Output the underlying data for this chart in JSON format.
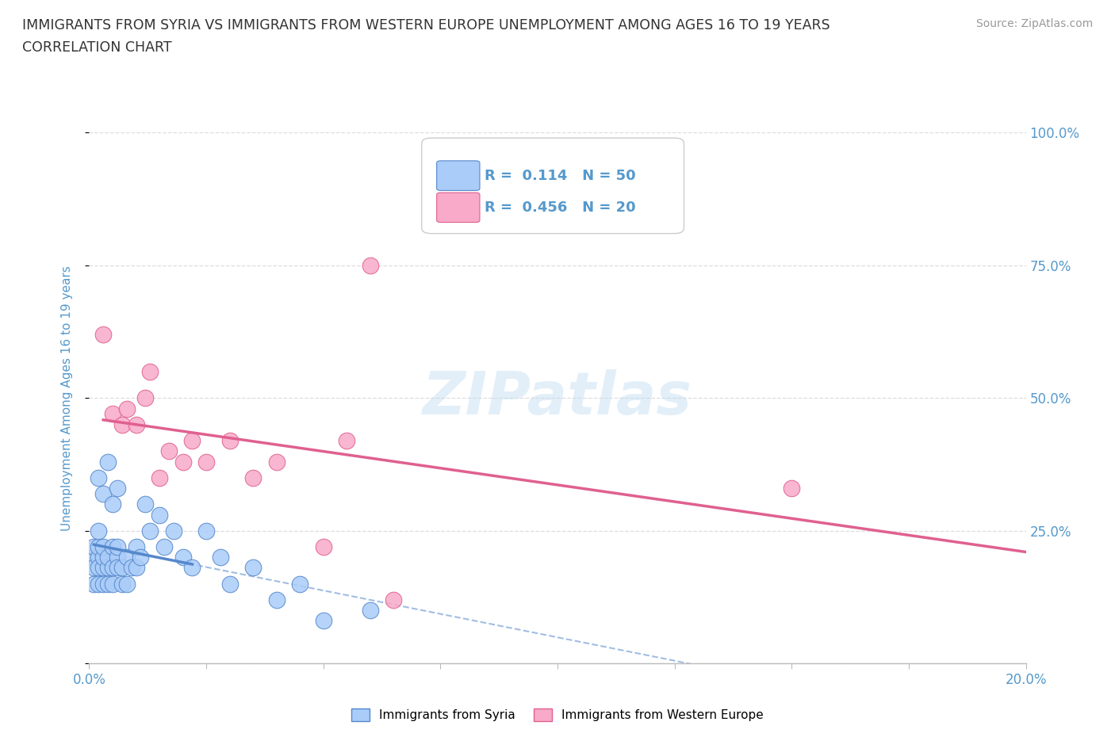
{
  "title_line1": "IMMIGRANTS FROM SYRIA VS IMMIGRANTS FROM WESTERN EUROPE UNEMPLOYMENT AMONG AGES 16 TO 19 YEARS",
  "title_line2": "CORRELATION CHART",
  "source": "Source: ZipAtlas.com",
  "ylabel": "Unemployment Among Ages 16 to 19 years",
  "xlim": [
    0.0,
    0.2
  ],
  "ylim": [
    0.0,
    1.0
  ],
  "yticks": [
    0.0,
    0.25,
    0.5,
    0.75,
    1.0
  ],
  "ytick_labels": [
    "",
    "25.0%",
    "50.0%",
    "75.0%",
    "100.0%"
  ],
  "xticks": [
    0.0,
    0.025,
    0.05,
    0.075,
    0.1,
    0.125,
    0.15,
    0.175,
    0.2
  ],
  "xtick_labels": [
    "0.0%",
    "",
    "",
    "",
    "",
    "",
    "",
    "",
    "20.0%"
  ],
  "watermark": "ZIPatlas",
  "syria_color": "#aaccf8",
  "we_color": "#f8aac8",
  "syria_line_color": "#5588cc",
  "we_line_color": "#e06090",
  "background_color": "#ffffff",
  "grid_color": "#dddddd",
  "title_color": "#333333",
  "axis_color": "#5599cc",
  "legend_box_color": "#eeeeee",
  "syria_points_x": [
    0.001,
    0.001,
    0.001,
    0.001,
    0.002,
    0.002,
    0.002,
    0.002,
    0.002,
    0.003,
    0.003,
    0.003,
    0.003,
    0.004,
    0.004,
    0.004,
    0.005,
    0.005,
    0.005,
    0.006,
    0.006,
    0.006,
    0.007,
    0.007,
    0.008,
    0.008,
    0.009,
    0.01,
    0.01,
    0.011,
    0.012,
    0.013,
    0.015,
    0.016,
    0.018,
    0.02,
    0.022,
    0.025,
    0.028,
    0.03,
    0.035,
    0.04,
    0.045,
    0.05,
    0.06,
    0.002,
    0.003,
    0.004,
    0.005,
    0.006
  ],
  "syria_points_y": [
    0.2,
    0.18,
    0.22,
    0.15,
    0.2,
    0.18,
    0.22,
    0.25,
    0.15,
    0.18,
    0.2,
    0.15,
    0.22,
    0.18,
    0.2,
    0.15,
    0.22,
    0.18,
    0.15,
    0.2,
    0.18,
    0.22,
    0.15,
    0.18,
    0.2,
    0.15,
    0.18,
    0.22,
    0.18,
    0.2,
    0.3,
    0.25,
    0.28,
    0.22,
    0.25,
    0.2,
    0.18,
    0.25,
    0.2,
    0.15,
    0.18,
    0.12,
    0.15,
    0.08,
    0.1,
    0.35,
    0.32,
    0.38,
    0.3,
    0.33
  ],
  "we_points_x": [
    0.003,
    0.005,
    0.007,
    0.008,
    0.01,
    0.012,
    0.013,
    0.015,
    0.017,
    0.02,
    0.022,
    0.025,
    0.03,
    0.035,
    0.04,
    0.05,
    0.055,
    0.065,
    0.15,
    0.06
  ],
  "we_points_y": [
    0.62,
    0.47,
    0.45,
    0.48,
    0.45,
    0.5,
    0.55,
    0.35,
    0.4,
    0.38,
    0.42,
    0.38,
    0.42,
    0.35,
    0.38,
    0.22,
    0.42,
    0.12,
    0.33,
    0.75
  ]
}
